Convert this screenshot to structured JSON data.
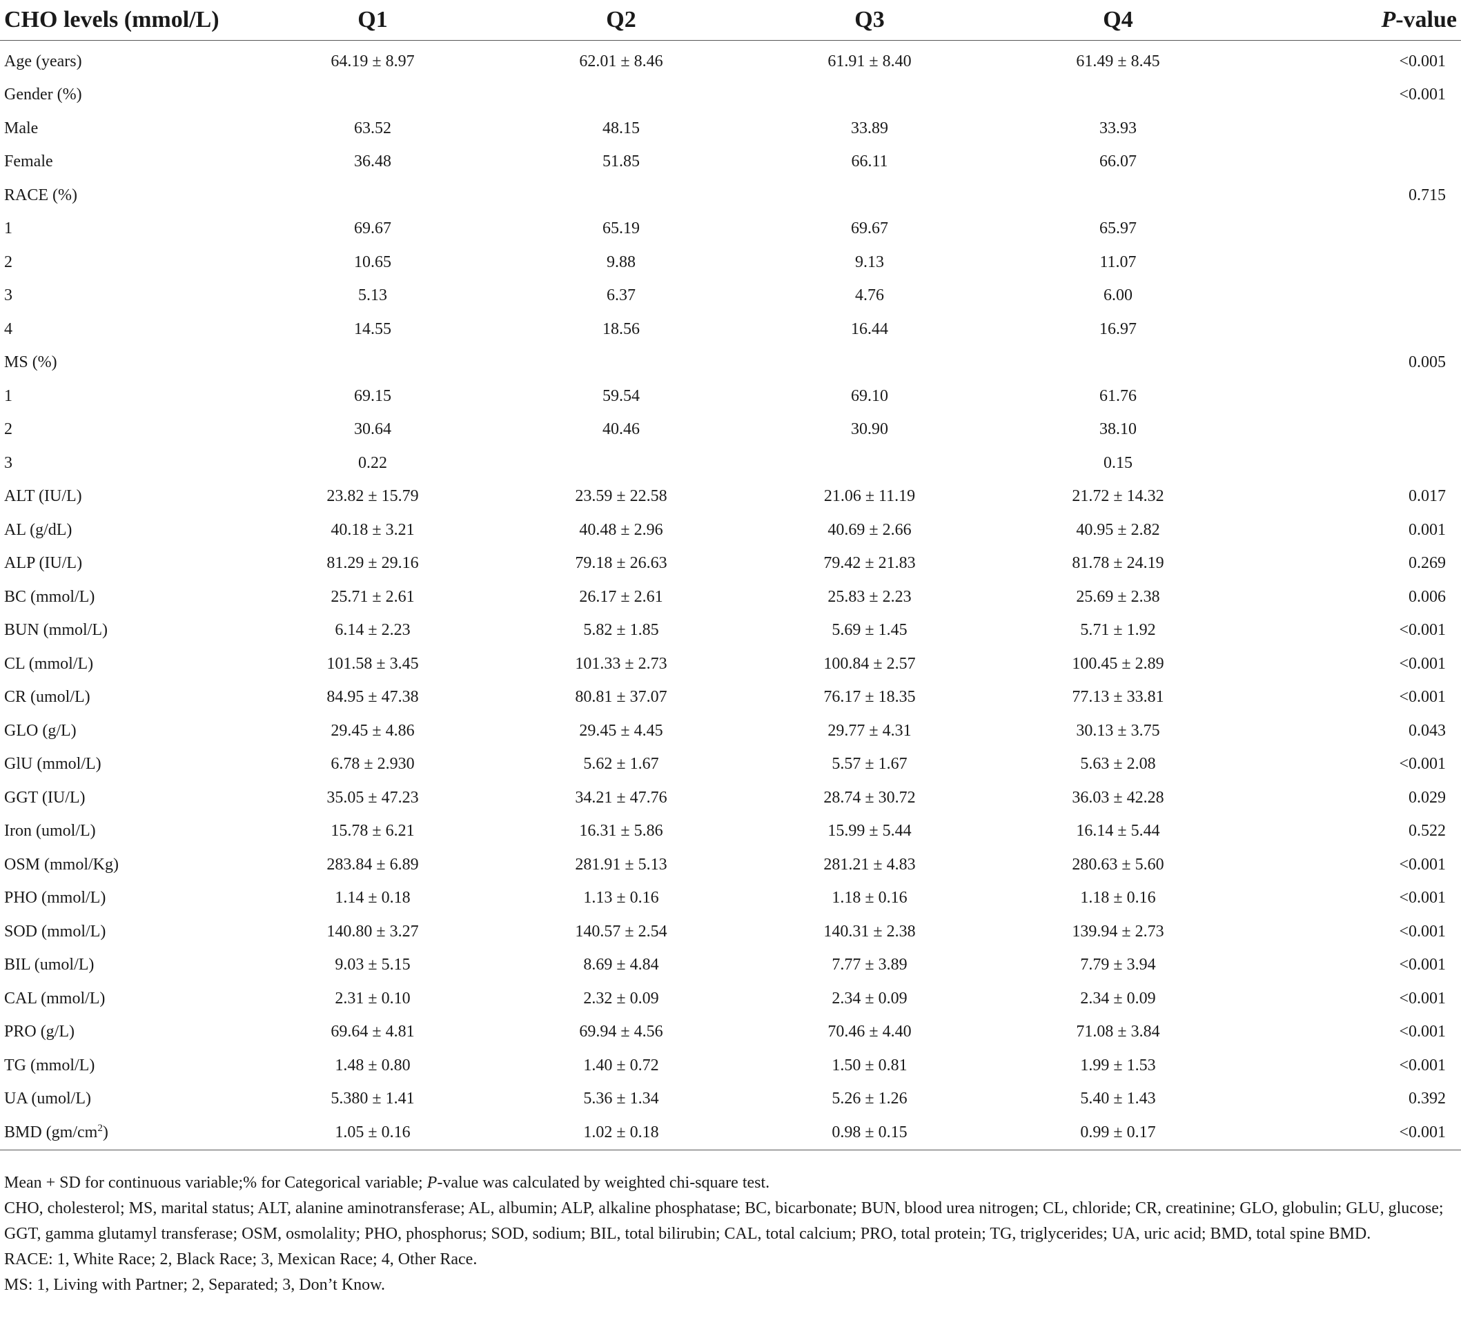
{
  "table": {
    "header": {
      "label": "CHO levels (mmol/L)",
      "q1": "Q1",
      "q2": "Q2",
      "q3": "Q3",
      "q4": "Q4",
      "p_italic": "P",
      "p_rest": "-value"
    },
    "rows": [
      {
        "label": "Age (years)",
        "q1": "64.19 ± 8.97",
        "q2": "62.01 ± 8.46",
        "q3": "61.91 ± 8.40",
        "q4": "61.49 ± 8.45",
        "p": "<0.001"
      },
      {
        "label": "Gender (%)",
        "q1": "",
        "q2": "",
        "q3": "",
        "q4": "",
        "p": "<0.001"
      },
      {
        "label": "Male",
        "q1": "63.52",
        "q2": "48.15",
        "q3": "33.89",
        "q4": "33.93",
        "p": ""
      },
      {
        "label": "Female",
        "q1": "36.48",
        "q2": "51.85",
        "q3": "66.11",
        "q4": "66.07",
        "p": ""
      },
      {
        "label": "RACE (%)",
        "q1": "",
        "q2": "",
        "q3": "",
        "q4": "",
        "p": "0.715"
      },
      {
        "label": "1",
        "q1": "69.67",
        "q2": "65.19",
        "q3": "69.67",
        "q4": "65.97",
        "p": ""
      },
      {
        "label": "2",
        "q1": "10.65",
        "q2": "9.88",
        "q3": "9.13",
        "q4": "11.07",
        "p": ""
      },
      {
        "label": "3",
        "q1": "5.13",
        "q2": "6.37",
        "q3": "4.76",
        "q4": "6.00",
        "p": ""
      },
      {
        "label": "4",
        "q1": "14.55",
        "q2": "18.56",
        "q3": "16.44",
        "q4": "16.97",
        "p": ""
      },
      {
        "label": "MS (%)",
        "q1": "",
        "q2": "",
        "q3": "",
        "q4": "",
        "p": "0.005"
      },
      {
        "label": "1",
        "q1": "69.15",
        "q2": "59.54",
        "q3": "69.10",
        "q4": "61.76",
        "p": ""
      },
      {
        "label": "2",
        "q1": "30.64",
        "q2": "40.46",
        "q3": "30.90",
        "q4": "38.10",
        "p": ""
      },
      {
        "label": "3",
        "q1": "0.22",
        "q2": "",
        "q3": "",
        "q4": "0.15",
        "p": ""
      },
      {
        "label": "ALT (IU/L)",
        "q1": "23.82 ± 15.79",
        "q2": "23.59 ± 22.58",
        "q3": "21.06 ± 11.19",
        "q4": "21.72 ± 14.32",
        "p": "0.017"
      },
      {
        "label": "AL (g/dL)",
        "q1": "40.18 ± 3.21",
        "q2": "40.48 ± 2.96",
        "q3": "40.69 ± 2.66",
        "q4": "40.95 ± 2.82",
        "p": "0.001"
      },
      {
        "label": "ALP (IU/L)",
        "q1": "81.29 ± 29.16",
        "q2": "79.18 ± 26.63",
        "q3": "79.42 ± 21.83",
        "q4": "81.78 ± 24.19",
        "p": "0.269"
      },
      {
        "label": "BC (mmol/L)",
        "q1": "25.71 ± 2.61",
        "q2": "26.17 ± 2.61",
        "q3": "25.83 ± 2.23",
        "q4": "25.69 ± 2.38",
        "p": "0.006"
      },
      {
        "label": "BUN (mmol/L)",
        "q1": "6.14 ± 2.23",
        "q2": "5.82 ± 1.85",
        "q3": "5.69 ± 1.45",
        "q4": "5.71 ± 1.92",
        "p": "<0.001"
      },
      {
        "label": "CL (mmol/L)",
        "q1": "101.58 ± 3.45",
        "q2": "101.33 ± 2.73",
        "q3": "100.84 ± 2.57",
        "q4": "100.45 ± 2.89",
        "p": "<0.001"
      },
      {
        "label": "CR (umol/L)",
        "q1": "84.95 ± 47.38",
        "q2": "80.81 ± 37.07",
        "q3": "76.17 ± 18.35",
        "q4": "77.13 ± 33.81",
        "p": "<0.001"
      },
      {
        "label": "GLO (g/L)",
        "q1": "29.45 ± 4.86",
        "q2": "29.45 ± 4.45",
        "q3": "29.77 ± 4.31",
        "q4": "30.13 ± 3.75",
        "p": "0.043"
      },
      {
        "label": "GlU (mmol/L)",
        "q1": "6.78 ± 2.930",
        "q2": "5.62 ± 1.67",
        "q3": "5.57 ± 1.67",
        "q4": "5.63 ± 2.08",
        "p": "<0.001"
      },
      {
        "label": "GGT (IU/L)",
        "q1": "35.05 ± 47.23",
        "q2": "34.21 ± 47.76",
        "q3": "28.74 ± 30.72",
        "q4": "36.03 ± 42.28",
        "p": "0.029"
      },
      {
        "label": "Iron (umol/L)",
        "q1": "15.78 ± 6.21",
        "q2": "16.31 ± 5.86",
        "q3": "15.99 ± 5.44",
        "q4": "16.14 ± 5.44",
        "p": "0.522"
      },
      {
        "label": "OSM (mmol/Kg)",
        "q1": "283.84 ± 6.89",
        "q2": "281.91 ± 5.13",
        "q3": "281.21 ± 4.83",
        "q4": "280.63 ± 5.60",
        "p": "<0.001"
      },
      {
        "label": "PHO (mmol/L)",
        "q1": "1.14 ± 0.18",
        "q2": "1.13 ± 0.16",
        "q3": "1.18 ± 0.16",
        "q4": "1.18 ± 0.16",
        "p": "<0.001"
      },
      {
        "label": "SOD (mmol/L)",
        "q1": "140.80 ± 3.27",
        "q2": "140.57 ± 2.54",
        "q3": "140.31 ± 2.38",
        "q4": "139.94 ± 2.73",
        "p": "<0.001"
      },
      {
        "label": "BIL (umol/L)",
        "q1": "9.03 ± 5.15",
        "q2": "8.69 ± 4.84",
        "q3": "7.77 ± 3.89",
        "q4": "7.79 ± 3.94",
        "p": "<0.001"
      },
      {
        "label": "CAL (mmol/L)",
        "q1": "2.31 ± 0.10",
        "q2": "2.32 ± 0.09",
        "q3": "2.34 ± 0.09",
        "q4": "2.34 ± 0.09",
        "p": "<0.001"
      },
      {
        "label": "PRO (g/L)",
        "q1": "69.64 ± 4.81",
        "q2": "69.94 ± 4.56",
        "q3": "70.46 ± 4.40",
        "q4": "71.08 ± 3.84",
        "p": "<0.001"
      },
      {
        "label": "TG (mmol/L)",
        "q1": "1.48 ± 0.80",
        "q2": "1.40 ± 0.72",
        "q3": "1.50 ± 0.81",
        "q4": "1.99 ± 1.53",
        "p": "<0.001"
      },
      {
        "label": "UA (umol/L)",
        "q1": "5.380 ± 1.41",
        "q2": "5.36 ± 1.34",
        "q3": "5.26 ± 1.26",
        "q4": "5.40 ± 1.43",
        "p": "0.392"
      },
      {
        "label": "BMD (gm/cm",
        "label_sup": "2",
        "label_suffix": ")",
        "q1": "1.05 ± 0.16",
        "q2": "1.02 ± 0.18",
        "q3": "0.98 ± 0.15",
        "q4": "0.99 ± 0.17",
        "p": "<0.001"
      }
    ]
  },
  "footnotes": {
    "line1_a": "Mean + SD for continuous variable;% for Categorical variable; ",
    "line1_p": "P",
    "line1_b": "-value was calculated by weighted chi-square test.",
    "abbrev": "CHO, cholesterol; MS, marital status; ALT, alanine aminotransferase; AL, albumin; ALP, alkaline phosphatase; BC, bicarbonate; BUN, blood urea nitrogen; CL, chloride; CR, creatinine; GLO, globulin; GLU, glucose; GGT, gamma glutamyl transferase; OSM, osmolality; PHO, phosphorus; SOD, sodium; BIL, total bilirubin; CAL, total calcium; PRO, total protein; TG, triglycerides; UA, uric acid; BMD, total spine BMD.",
    "race": "RACE: 1, White Race; 2, Black Race; 3, Mexican Race; 4, Other Race.",
    "ms": "MS: 1, Living with Partner; 2, Separated; 3, Don’t Know."
  }
}
